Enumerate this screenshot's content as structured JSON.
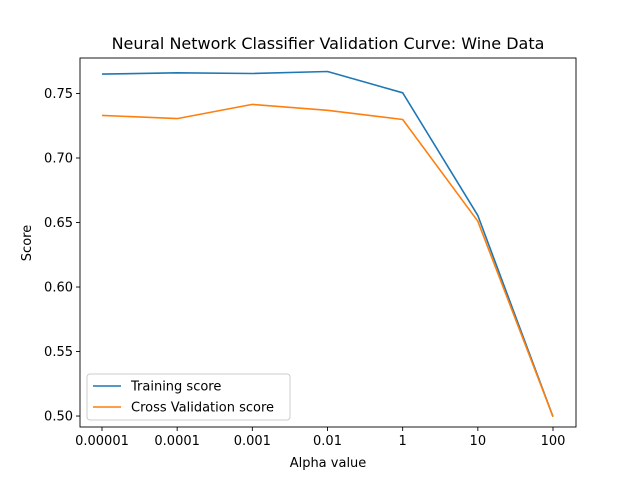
{
  "chart_data": {
    "type": "line",
    "title": "Neural Network Classifier Validation Curve: Wine Data",
    "xlabel": "Alpha value",
    "ylabel": "Score",
    "categories": [
      "0.00001",
      "0.0001",
      "0.001",
      "0.01",
      "1",
      "10",
      "100"
    ],
    "ylim": [
      0.4915,
      0.7775
    ],
    "yticks": [
      "0.50",
      "0.55",
      "0.60",
      "0.65",
      "0.70",
      "0.75"
    ],
    "grid": false,
    "legend_position": "lower-left",
    "series": [
      {
        "name": "Training score",
        "color": "#1f77b4",
        "values": [
          0.765,
          0.766,
          0.7655,
          0.767,
          0.7505,
          0.6555,
          0.4995
        ]
      },
      {
        "name": "Cross Validation score",
        "color": "#ff7f0e",
        "values": [
          0.733,
          0.7305,
          0.7415,
          0.737,
          0.7298,
          0.651,
          0.4995
        ]
      }
    ]
  }
}
